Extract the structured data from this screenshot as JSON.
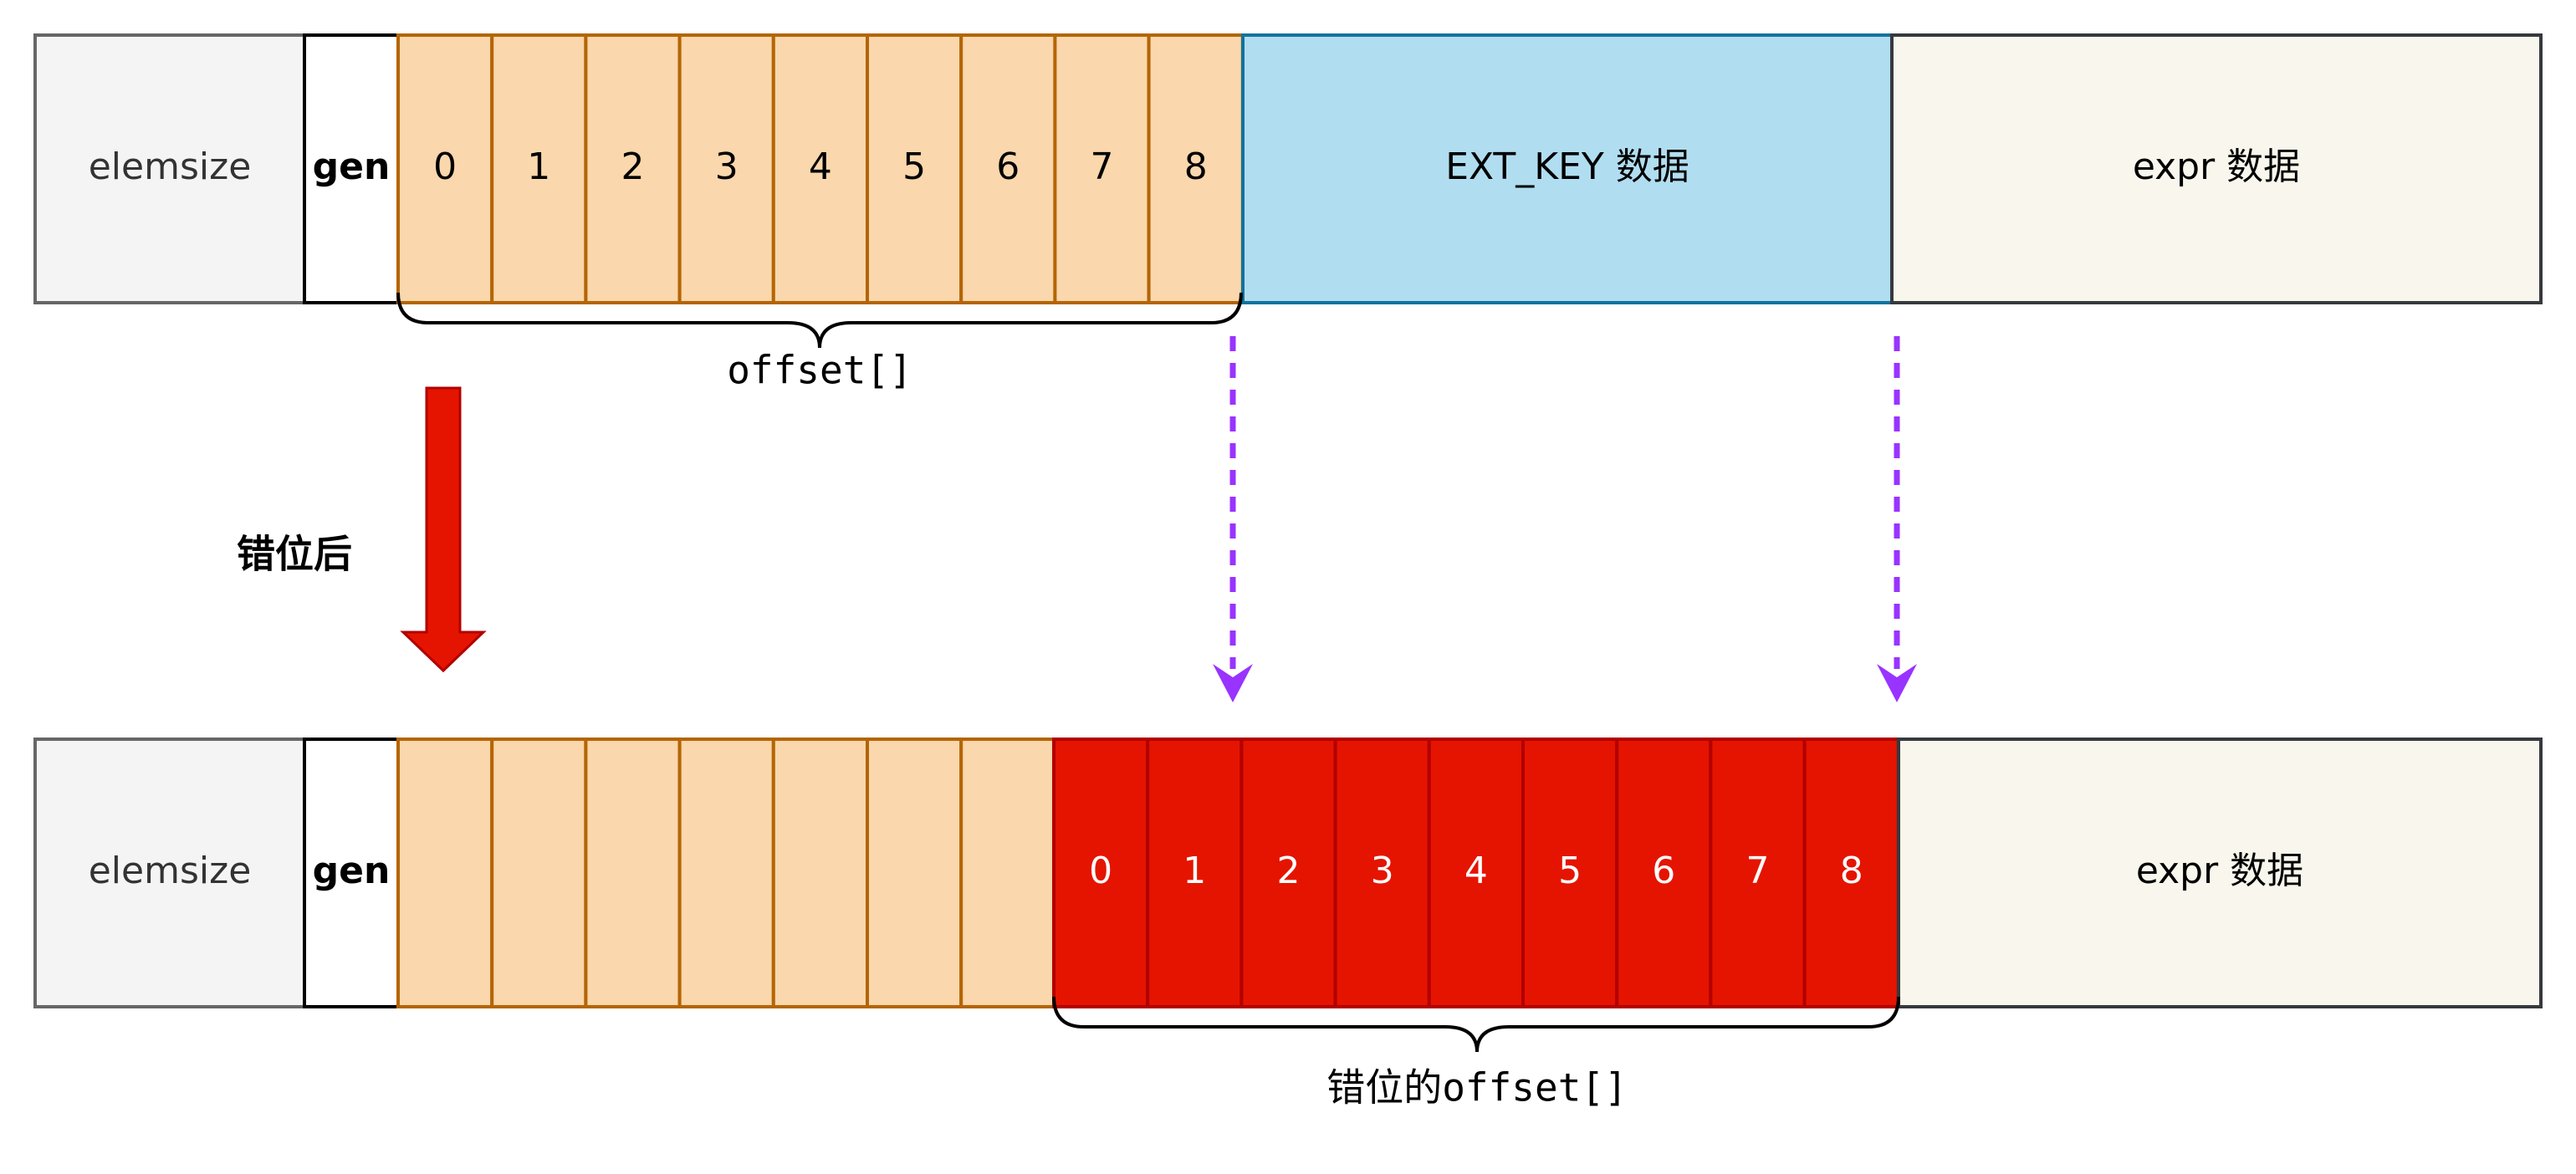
{
  "colors": {
    "elemsize_fill": "#f4f4f4",
    "elemsize_stroke": "#666666",
    "gen_fill": "#ffffff",
    "offset_fill": "#fad7ac",
    "offset_stroke": "#b46504",
    "ext_key_fill": "#b1ddf0",
    "ext_key_stroke": "#10739e",
    "expr_fill": "#f9f7ed",
    "expr_stroke": "#36393d",
    "shifted_fill": "#e51400",
    "shifted_stroke": "#b20000",
    "down_arrow": "#e51400",
    "dashed_arrow": "#9933ff"
  },
  "top_row": {
    "elemsize": "elemsize",
    "gen": "gen",
    "offsets": [
      "0",
      "1",
      "2",
      "3",
      "4",
      "5",
      "6",
      "7",
      "8"
    ],
    "ext_key": "EXT_KEY 数据",
    "expr": "expr 数据",
    "brace_label": "offset[]"
  },
  "bottom_row": {
    "elemsize": "elemsize",
    "gen": "gen",
    "shifted_offsets": [
      "0",
      "1",
      "2",
      "3",
      "4",
      "5",
      "6",
      "7",
      "8"
    ],
    "expr": "expr 数据",
    "brace_label": "错位的offset[]"
  },
  "shift_label": "错位后",
  "icons": {
    "down_arrow": "down-arrow-icon",
    "dashed_arrow": "dashed-down-arrow-icon"
  }
}
